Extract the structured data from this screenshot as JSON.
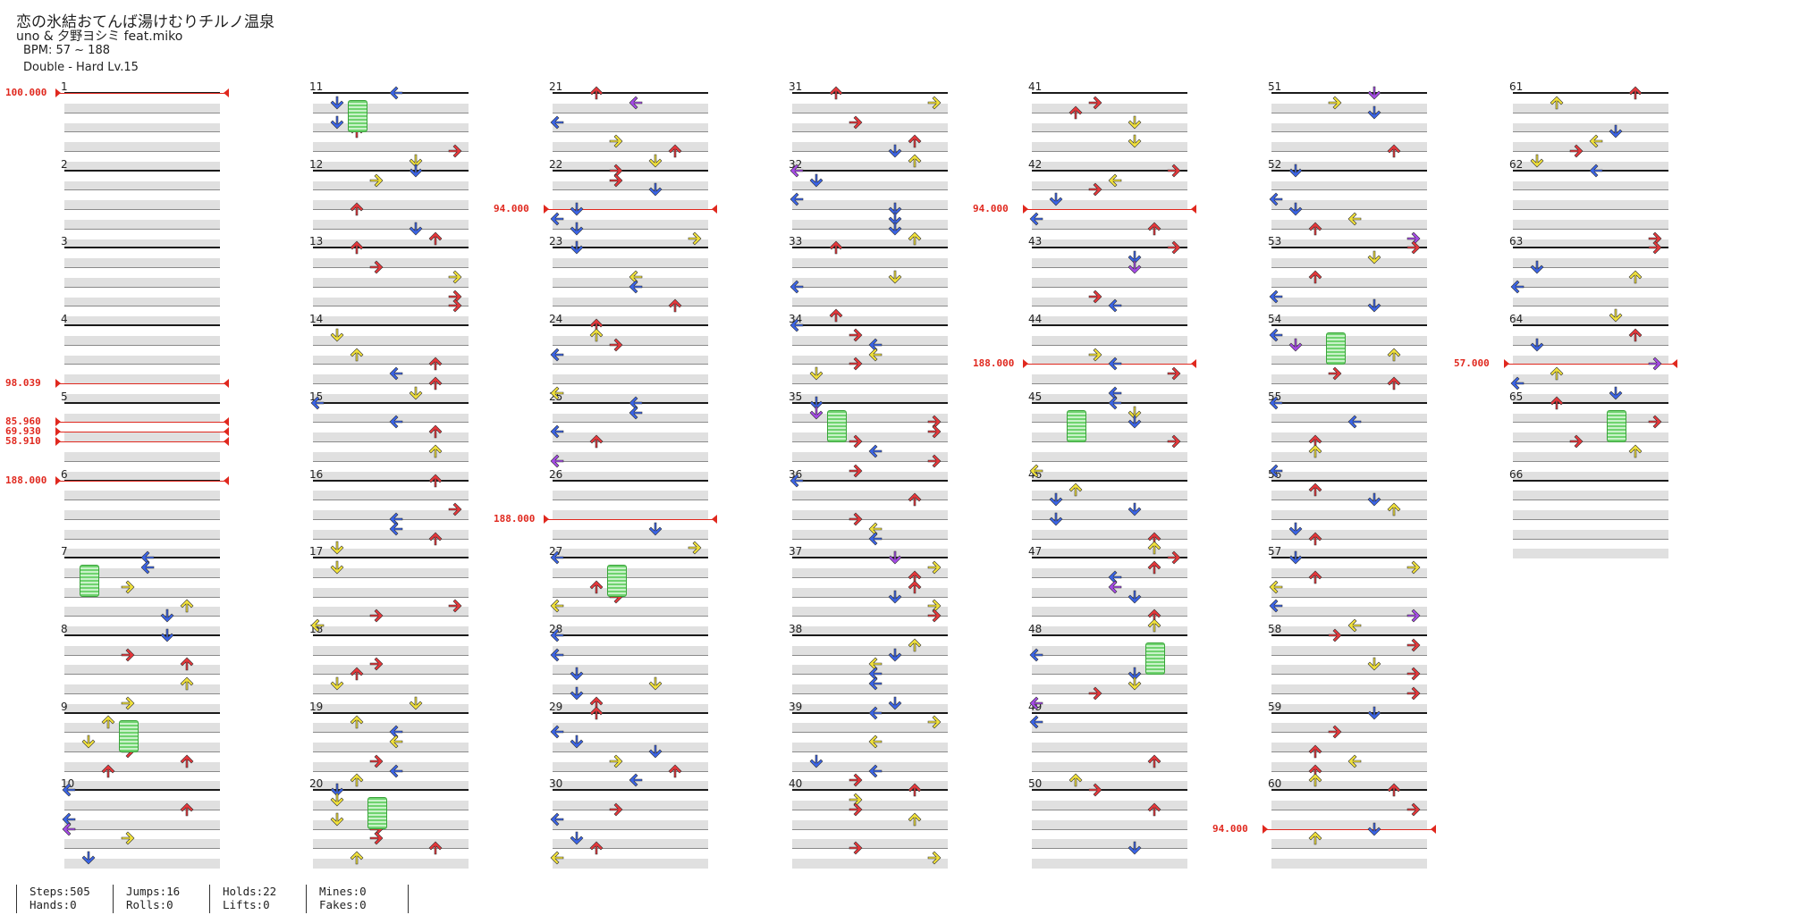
{
  "song": {
    "title": "恋の氷結おてんば湯けむりチルノ温泉",
    "artist": "uno & 夕野ヨシミ feat.miko",
    "bpm_text": "BPM: 57 ~ 188",
    "difficulty": "Double - Hard  Lv.15"
  },
  "measures": [
    1,
    2,
    3,
    4,
    5,
    6,
    7,
    8,
    9,
    10,
    11,
    12,
    13,
    14,
    15,
    16,
    17,
    18,
    19,
    20,
    21,
    22,
    23,
    24,
    25,
    26,
    27,
    28,
    29,
    30,
    31,
    32,
    33,
    34,
    35,
    36,
    37,
    38,
    39,
    40,
    41,
    42,
    43,
    44,
    45,
    46,
    47,
    48,
    49,
    50,
    51,
    52,
    53,
    54,
    55,
    56,
    57,
    58,
    59,
    60,
    61,
    62,
    63,
    64,
    65,
    66
  ],
  "bpm_changes": [
    {
      "label": "100.000",
      "measure": 1
    },
    {
      "label": "98.039",
      "measure": 4.75
    },
    {
      "label": "85.960",
      "measure": 5.25
    },
    {
      "label": "69.930",
      "measure": 5.375
    },
    {
      "label": "58.910",
      "measure": 5.5
    },
    {
      "label": "188.000",
      "measure": 6
    },
    {
      "label": "94.000",
      "measure": 22.5
    },
    {
      "label": "188.000",
      "measure": 26.5
    },
    {
      "label": "94.000",
      "measure": 42.5
    },
    {
      "label": "188.000",
      "measure": 44.5
    },
    {
      "label": "57.000",
      "measure": 64.5
    },
    {
      "label": "94.000",
      "measure": 60.5
    }
  ],
  "colors": {
    "left": "#3a64e8",
    "down": "#3a64e8",
    "up": "#e8363a",
    "right": "#e8363a",
    "eighth": "#f2e23a",
    "twelfth": "#a64ae8",
    "sixteenth": "#f2902a",
    "hold": "#6fd36f",
    "bpm": "#e0281e"
  },
  "stats": [
    {
      "a": "Steps:505",
      "b": "Hands:0"
    },
    {
      "a": "Jumps:16",
      "b": "Rolls:0"
    },
    {
      "a": "Holds:22",
      "b": "Lifts:0"
    },
    {
      "a": "Mines:0",
      "b": "Fakes:0"
    }
  ]
}
